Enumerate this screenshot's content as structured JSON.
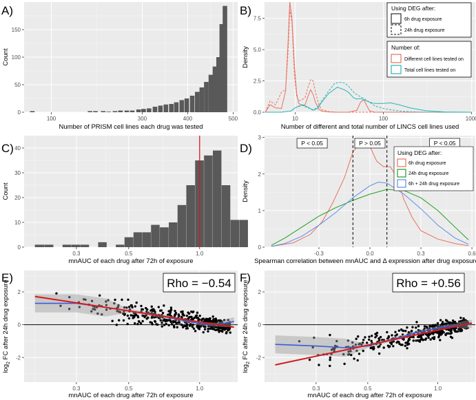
{
  "colors": {
    "grey_bar": "#595959",
    "red": "#e8705f",
    "teal": "#2bb5b5",
    "green": "#1f9e1f",
    "blue": "#5b8ee8",
    "fit_red": "#d7191c",
    "fit_blue": "#3b5bdb"
  },
  "panelA": {
    "letter": "A)",
    "chart_data": {
      "type": "bar",
      "title": "",
      "xlabel": "Number of PRISM cell lines each drug was tested",
      "ylabel": "Count",
      "xlim": [
        40,
        510
      ],
      "ylim": [
        0,
        200
      ],
      "xticks": [
        "100",
        "300",
        "400",
        "500"
      ],
      "yticks": [
        "0",
        "50",
        "100",
        "150"
      ],
      "bins_x": [
        58,
        185,
        197,
        214,
        226,
        240,
        252,
        266,
        278,
        292,
        303,
        315,
        328,
        340,
        352,
        364,
        375,
        387,
        398,
        410,
        421,
        431,
        441,
        451,
        460,
        468,
        475,
        482
      ],
      "values": [
        2,
        2,
        2,
        2,
        1,
        2,
        3,
        3,
        3,
        5,
        6,
        7,
        10,
        12,
        14,
        15,
        18,
        22,
        25,
        30,
        37,
        45,
        55,
        68,
        83,
        100,
        160,
        193
      ]
    }
  },
  "panelB": {
    "letter": "B)",
    "chart_data": {
      "type": "line",
      "xlabel": "Number of different and total number of LINCS cell lines used",
      "ylabel": "Density",
      "xscale": "log10",
      "xlim": [
        4.5,
        1100
      ],
      "ylim": [
        0,
        8.8
      ],
      "xticks": [
        "10",
        "100",
        "1000"
      ],
      "yticks": [
        "0.0",
        "2.5",
        "5.0",
        "7.5"
      ],
      "series": [
        {
          "name": "Different cell lines tested on - 6h",
          "color": "red",
          "dash": "solid",
          "x": [
            4.6,
            5.2,
            6,
            7,
            7.8,
            8.3,
            8.7,
            9.2,
            9.8,
            10.4,
            11,
            12,
            13,
            14,
            15,
            16,
            17,
            18.5,
            20,
            24,
            30,
            40,
            50,
            55,
            60,
            65,
            70,
            80,
            100,
            1000
          ],
          "y": [
            0,
            0.6,
            0.35,
            0.3,
            1.7,
            5.5,
            8.8,
            7.5,
            3.8,
            1.5,
            0.7,
            0.55,
            0.6,
            1.3,
            1.8,
            1.4,
            0.8,
            0.25,
            0.08,
            0.02,
            0,
            0,
            0.15,
            0.8,
            1.0,
            0.5,
            0.1,
            0,
            0,
            0
          ]
        },
        {
          "name": "Different cell lines tested on - 24h",
          "color": "red",
          "dash": "dashed",
          "x": [
            4.6,
            5.2,
            6,
            7,
            7.8,
            8.3,
            8.7,
            9.2,
            9.8,
            10.4,
            11,
            12,
            13,
            14,
            15,
            16,
            17,
            18.5,
            20,
            24,
            30,
            40,
            50,
            60,
            80,
            100,
            1000
          ],
          "y": [
            0,
            0.9,
            0.6,
            1.6,
            1.8,
            4.8,
            8.2,
            7.2,
            3.0,
            1.3,
            0.9,
            1.0,
            1.2,
            2.0,
            2.6,
            2.5,
            1.6,
            0.6,
            0.2,
            0.05,
            0,
            0,
            0,
            0,
            0,
            0,
            0
          ]
        },
        {
          "name": "Total cell lines tested on - 6h",
          "color": "teal",
          "dash": "solid",
          "x": [
            4.6,
            7,
            9,
            10,
            12,
            14,
            16,
            18,
            20,
            24,
            30,
            36,
            40,
            46,
            50,
            55,
            60,
            70,
            80,
            100,
            120,
            150,
            200,
            300,
            500,
            1000
          ],
          "y": [
            0,
            0,
            0.1,
            0.35,
            0.6,
            0.4,
            0.15,
            0.3,
            0.8,
            1.5,
            2.0,
            1.8,
            1.6,
            1.15,
            1.05,
            1.1,
            1.0,
            0.8,
            0.7,
            0.7,
            0.75,
            0.6,
            0.35,
            0.12,
            0.02,
            0
          ]
        },
        {
          "name": "Total cell lines tested on - 24h",
          "color": "teal",
          "dash": "dashed",
          "x": [
            4.6,
            7,
            9,
            10,
            12,
            14,
            16,
            18,
            20,
            24,
            28,
            32,
            36,
            40,
            46,
            50,
            60,
            70,
            80,
            100,
            120,
            150,
            200,
            300,
            1000
          ],
          "y": [
            0,
            0,
            0.1,
            0.35,
            0.55,
            0.35,
            0.2,
            0.4,
            0.9,
            1.7,
            2.3,
            2.4,
            2.35,
            2.1,
            1.6,
            1.4,
            1.1,
            0.8,
            0.5,
            0.3,
            0.2,
            0.1,
            0.04,
            0,
            0
          ]
        }
      ],
      "legend": {
        "title1": "Using DEG after:",
        "items1": [
          "6h drug exposure",
          "24h drug exposure"
        ],
        "title2": "Number of:",
        "items2": [
          "Different cell lines tested on",
          "Total cell lines tested on"
        ],
        "position": "top-right"
      }
    }
  },
  "panelC": {
    "letter": "C)",
    "chart_data": {
      "type": "bar",
      "xlabel": "mnAUC of each drug after 72h of exposure",
      "ylabel": "Count",
      "xscale": "log10",
      "xlim": [
        0.18,
        1.45
      ],
      "ylim": [
        0,
        45
      ],
      "xticks": [
        "0.3",
        "0.5",
        "1.0"
      ],
      "yticks": [
        "0",
        "10",
        "20",
        "30",
        "40"
      ],
      "bins_x": [
        0.2,
        0.22,
        0.24,
        0.262,
        0.286,
        0.312,
        0.34,
        0.371,
        0.404,
        0.441,
        0.48,
        0.524,
        0.571,
        0.622,
        0.678,
        0.74,
        0.806,
        0.878,
        0.957,
        1.044,
        1.138,
        1.24,
        1.352,
        1.474
      ],
      "values": [
        1,
        1,
        0,
        1,
        1,
        1,
        0,
        2,
        0,
        1,
        4,
        6,
        6,
        9,
        8,
        10,
        17,
        25,
        35,
        37,
        39,
        25,
        11,
        11
      ],
      "vline": 1.0
    }
  },
  "panelD": {
    "letter": "D)",
    "chart_data": {
      "type": "line",
      "xlabel": "Spearman correlation between mnAUC and Δ expression after drug exposure",
      "ylabel": "Density",
      "xlim": [
        -0.62,
        0.62
      ],
      "ylim": [
        0,
        3.05
      ],
      "xticks": [
        "-0.3",
        "0.0",
        "0.3",
        "0.6"
      ],
      "yticks": [
        "0",
        "1",
        "2",
        "3"
      ],
      "series": [
        {
          "name": "6h drug exposure",
          "color": "red",
          "x": [
            -0.58,
            -0.45,
            -0.35,
            -0.28,
            -0.22,
            -0.15,
            -0.1,
            -0.05,
            0.0,
            0.04,
            0.08,
            0.12,
            0.16,
            0.2,
            0.25,
            0.3,
            0.4,
            0.5,
            0.58
          ],
          "y": [
            0.02,
            0.12,
            0.35,
            0.7,
            1.2,
            1.9,
            2.6,
            2.9,
            2.75,
            2.35,
            2.2,
            2.2,
            1.9,
            1.3,
            0.8,
            0.45,
            0.22,
            0.1,
            0.04
          ]
        },
        {
          "name": "24h drug exposure",
          "color": "green",
          "x": [
            -0.58,
            -0.5,
            -0.4,
            -0.3,
            -0.2,
            -0.1,
            0.0,
            0.1,
            0.2,
            0.3,
            0.4,
            0.5,
            0.58
          ],
          "y": [
            0.05,
            0.25,
            0.55,
            0.85,
            1.08,
            1.28,
            1.45,
            1.58,
            1.55,
            1.35,
            1.0,
            0.55,
            0.2
          ]
        },
        {
          "name": "6h + 24h drug exposure",
          "color": "blue",
          "x": [
            -0.58,
            -0.5,
            -0.4,
            -0.3,
            -0.2,
            -0.1,
            0.0,
            0.05,
            0.1,
            0.2,
            0.3,
            0.4,
            0.5,
            0.58
          ],
          "y": [
            0.02,
            0.1,
            0.3,
            0.6,
            0.95,
            1.35,
            1.68,
            1.78,
            1.75,
            1.45,
            1.05,
            0.6,
            0.25,
            0.08
          ]
        }
      ],
      "vlines": [
        -0.1,
        0.1
      ],
      "annotations": [
        "P < 0.05",
        "P > 0.05",
        "P < 0.05"
      ],
      "legend": {
        "title": "Using DEG after:",
        "items": [
          "6h drug exposure",
          "24h drug exposure",
          "6h + 24h drug exposure"
        ],
        "position": "top-right"
      }
    }
  },
  "panelE": {
    "letter": "E)",
    "rho": "Rho = −0.54",
    "chart_data": {
      "type": "scatter",
      "xlabel": "mnAUC of each drug after 72h of exposure",
      "ylabel_main": "log",
      "ylabel_sub": "2",
      "ylabel_rest": " FC after 24h drug exposure",
      "xscale": "log10",
      "xlim": [
        0.18,
        1.45
      ],
      "ylim": [
        -3.5,
        3.3
      ],
      "xticks": [
        "0.3",
        "0.5",
        "1.0"
      ],
      "yticks": [
        "-2",
        "0",
        "2"
      ],
      "linear_fit": {
        "x": [
          0.2,
          1.4
        ],
        "y": [
          1.72,
          -0.15
        ]
      },
      "loess_fit": {
        "x": [
          0.2,
          0.3,
          0.4,
          0.5,
          0.6,
          0.7,
          0.8,
          0.9,
          1.0,
          1.1,
          1.2,
          1.3,
          1.4
        ],
        "y": [
          1.3,
          1.3,
          1.05,
          0.85,
          0.68,
          0.5,
          0.35,
          0.2,
          0.08,
          0.02,
          0.0,
          0.1,
          0.2
        ]
      },
      "n_points": 420,
      "seed": 7
    }
  },
  "panelF": {
    "letter": "F)",
    "rho": "Rho = +0.56",
    "chart_data": {
      "type": "scatter",
      "xlabel": "mnAUC of each drug after 72h of exposure",
      "ylabel_main": "log",
      "ylabel_sub": "2",
      "ylabel_rest": " FC after 24h drug exposure",
      "xscale": "log10",
      "xlim": [
        0.18,
        1.45
      ],
      "ylim": [
        -3.5,
        3.3
      ],
      "xticks": [
        "0.3",
        "0.5",
        "1.0"
      ],
      "yticks": [
        "-2",
        "0",
        "2"
      ],
      "linear_fit": {
        "x": [
          0.2,
          1.4
        ],
        "y": [
          -2.45,
          0.1
        ]
      },
      "loess_fit": {
        "x": [
          0.2,
          0.3,
          0.4,
          0.5,
          0.6,
          0.7,
          0.8,
          0.9,
          1.0,
          1.1,
          1.2,
          1.3,
          1.4
        ],
        "y": [
          -1.2,
          -1.3,
          -1.4,
          -1.3,
          -1.0,
          -0.75,
          -0.5,
          -0.35,
          -0.2,
          -0.1,
          -0.05,
          0.0,
          0.05
        ]
      },
      "n_points": 420,
      "seed": 13
    }
  }
}
